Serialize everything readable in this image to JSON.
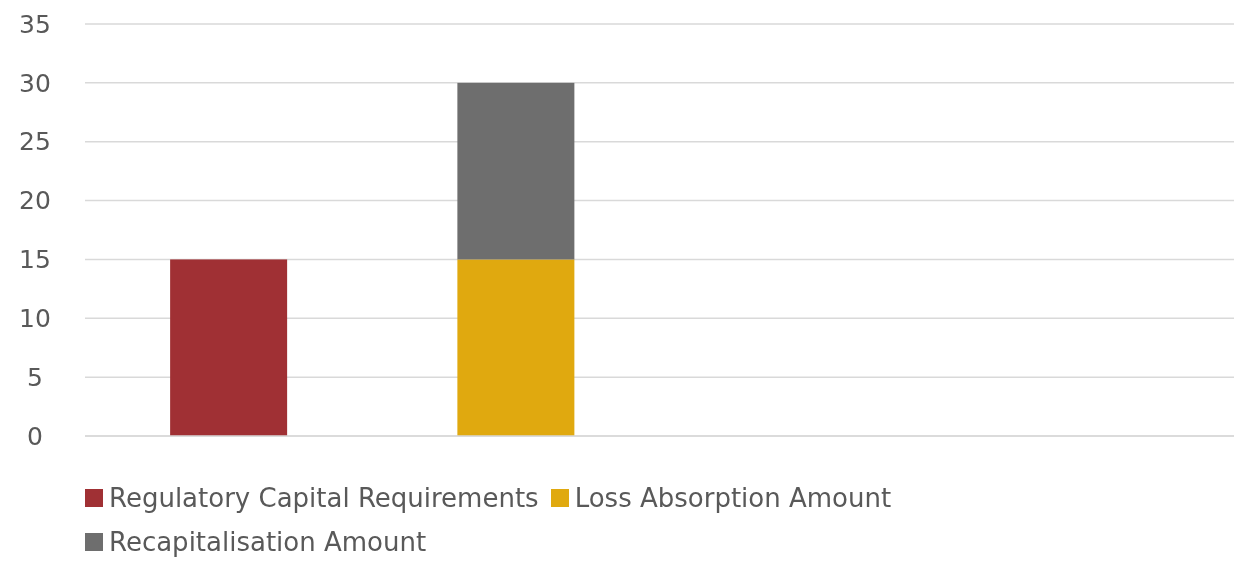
{
  "chart_data": {
    "type": "bar",
    "stacked": true,
    "categories": [
      null,
      null,
      null,
      null
    ],
    "series": [
      {
        "name": "Regulatory Capital Requirements",
        "color": "#a03034",
        "values": [
          15,
          null,
          null,
          null
        ]
      },
      {
        "name": "Loss Absorption Amount",
        "color": "#e0a90f",
        "values": [
          null,
          15,
          null,
          null
        ]
      },
      {
        "name": "Recapitalisation Amount",
        "color": "#6e6e6e",
        "values": [
          null,
          15,
          null,
          null
        ]
      }
    ],
    "ylim": [
      0,
      35
    ],
    "yticks": [
      0,
      5,
      10,
      15,
      20,
      25,
      30,
      35
    ],
    "grid": "y",
    "legend": "bottom"
  }
}
